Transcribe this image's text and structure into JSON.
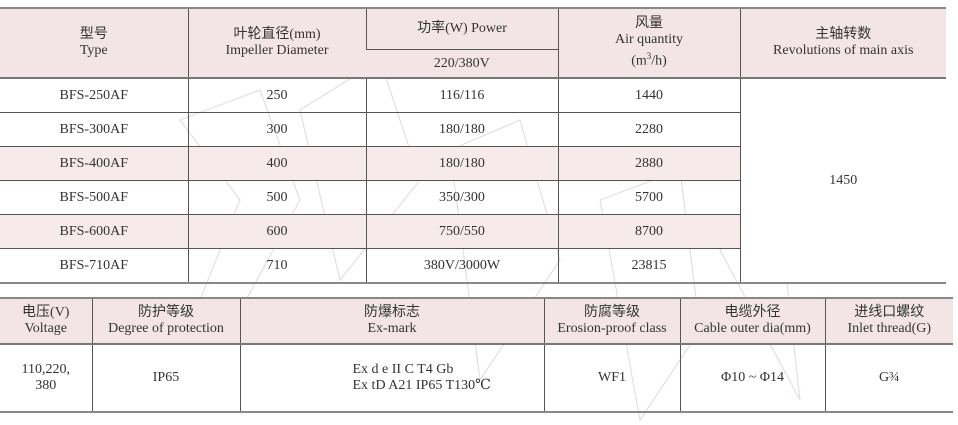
{
  "table1": {
    "headers": {
      "type_zh": "型号",
      "type_en": "Type",
      "diameter_zh": "叶轮直径(mm)",
      "diameter_en": "Impeller Diameter",
      "power": "功率(W)  Power",
      "power_sub": "220/380V",
      "air_zh": "风量",
      "air_en": "Air quantity",
      "air_unit_a": "(m",
      "air_unit_sup": "3",
      "air_unit_b": "/h)",
      "rev_zh": "主轴转数",
      "rev_en": "Revolutions of main axis"
    },
    "rows": [
      {
        "type": "BFS-250AF",
        "diameter": "250",
        "power": "116/116",
        "air": "1440"
      },
      {
        "type": "BFS-300AF",
        "diameter": "300",
        "power": "180/180",
        "air": "2280"
      },
      {
        "type": "BFS-400AF",
        "diameter": "400",
        "power": "180/180",
        "air": "2880"
      },
      {
        "type": "BFS-500AF",
        "diameter": "500",
        "power": "350/300",
        "air": "5700"
      },
      {
        "type": "BFS-600AF",
        "diameter": "600",
        "power": "750/550",
        "air": "8700"
      },
      {
        "type": "BFS-710AF",
        "diameter": "710",
        "power": "380V/3000W",
        "air": "23815"
      }
    ],
    "revolutions": "1450"
  },
  "table2": {
    "headers": [
      {
        "zh": "电压(V)",
        "en": "Voltage"
      },
      {
        "zh": "防护等级",
        "en": "Degree of protection"
      },
      {
        "zh": "防爆标志",
        "en": "Ex-mark"
      },
      {
        "zh": "防腐等级",
        "en": "Erosion-proof class"
      },
      {
        "zh": "电缆外径",
        "en": "Cable outer dia(mm)"
      },
      {
        "zh": "进线口螺纹",
        "en": "Inlet thread(G)"
      }
    ],
    "row": {
      "voltage_a": "110,220,",
      "voltage_b": "380",
      "protection": "IP65",
      "exmark_a": "Ex d e II C T4 Gb",
      "exmark_b": "Ex tD A21 IP65 T130℃",
      "erosion": "WF1",
      "cable": "Φ10 ~ Φ14",
      "thread": "G¾"
    }
  },
  "colors": {
    "header_bg": "#f3e5e5",
    "shaded_row": "#f7eaea",
    "border": "#555555"
  }
}
